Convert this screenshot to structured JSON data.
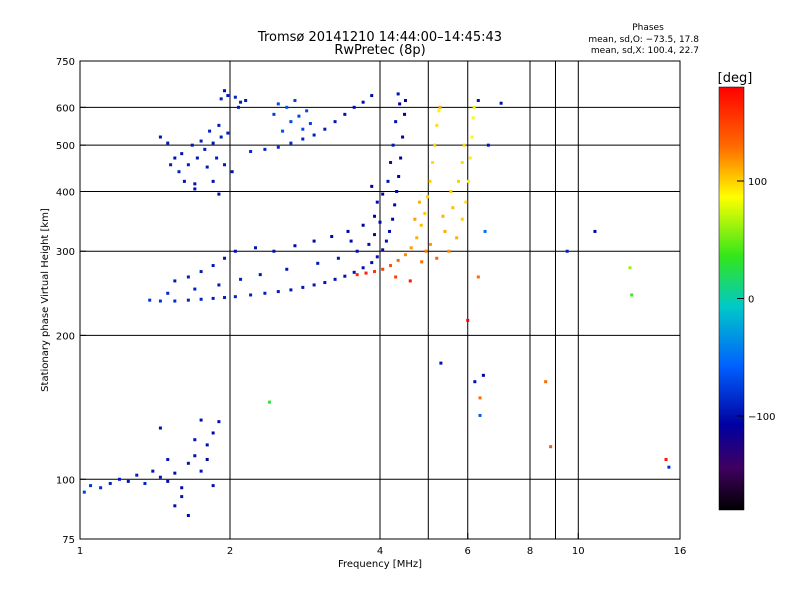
{
  "header": {
    "title_line1": "Tromsø 20141210 14:44:00–14:45:43",
    "title_line2": "RwPretec (8p)"
  },
  "phases": {
    "title": "Phases",
    "line_o": "mean, sd,O: −73.5, 17.8",
    "line_x": "mean, sd,X: 100.4, 22.7"
  },
  "colorbar": {
    "unit": "[deg]",
    "min": -180,
    "max": 180,
    "ticks": [
      {
        "value": 100,
        "label": "100"
      },
      {
        "value": 0,
        "label": "0"
      },
      {
        "value": -100,
        "label": "−100"
      }
    ]
  },
  "chart_data": {
    "type": "scatter",
    "title": "Tromsø 20141210 14:44:00–14:45:43",
    "subtitle": "RwPretec (8p)",
    "xlabel": "Frequency [MHz]",
    "ylabel": "Stationary phase Virtual Height [km]",
    "x_scale": "log",
    "y_scale": "log",
    "xlim": [
      1,
      16
    ],
    "ylim": [
      75,
      750
    ],
    "x_ticks": [
      {
        "value": 1,
        "label": "1"
      },
      {
        "value": 2,
        "label": "2"
      },
      {
        "value": 4,
        "label": "4"
      },
      {
        "value": 6,
        "label": "6"
      },
      {
        "value": 8,
        "label": "8"
      },
      {
        "value": 10,
        "label": "10"
      },
      {
        "value": 16,
        "label": "16"
      }
    ],
    "y_ticks": [
      {
        "value": 75,
        "label": "75"
      },
      {
        "value": 100,
        "label": "100"
      },
      {
        "value": 200,
        "label": "200"
      },
      {
        "value": 300,
        "label": "300"
      },
      {
        "value": 400,
        "label": "400"
      },
      {
        "value": 500,
        "label": "500"
      },
      {
        "value": 600,
        "label": "600"
      },
      {
        "value": 750,
        "label": "750"
      }
    ],
    "grid_x": [
      1,
      2,
      4,
      5,
      6,
      8,
      9,
      10,
      16
    ],
    "grid_y": [
      100,
      200,
      300,
      400,
      500,
      600
    ],
    "grid": true,
    "color_value": "phase [deg]",
    "series": [
      {
        "points": [
          [
            1.38,
            237,
            -80
          ],
          [
            1.45,
            236,
            -80
          ],
          [
            1.55,
            236,
            -85
          ],
          [
            1.65,
            237,
            -88
          ],
          [
            1.75,
            238,
            -90
          ],
          [
            1.85,
            239,
            -92
          ],
          [
            1.95,
            240,
            -92
          ],
          [
            2.05,
            241,
            -90
          ],
          [
            2.2,
            243,
            -90
          ],
          [
            2.35,
            245,
            -92
          ],
          [
            2.5,
            247,
            -92
          ],
          [
            2.65,
            249,
            -95
          ],
          [
            2.8,
            252,
            -95
          ],
          [
            2.95,
            255,
            -95
          ],
          [
            3.1,
            258,
            -96
          ],
          [
            3.25,
            262,
            -98
          ],
          [
            3.4,
            266,
            -100
          ],
          [
            3.55,
            271,
            -100
          ],
          [
            3.7,
            277,
            -100
          ],
          [
            3.85,
            284,
            -102
          ],
          [
            3.95,
            292,
            -100
          ],
          [
            4.05,
            302,
            -102
          ],
          [
            4.12,
            315,
            -100
          ],
          [
            4.18,
            330,
            -102
          ],
          [
            4.24,
            350,
            -105
          ],
          [
            4.28,
            375,
            -105
          ],
          [
            4.32,
            400,
            -105
          ],
          [
            4.36,
            430,
            -108
          ],
          [
            4.4,
            470,
            -108
          ],
          [
            4.44,
            520,
            -110
          ],
          [
            4.48,
            580,
            -108
          ],
          [
            4.5,
            620,
            -110
          ],
          [
            4.35,
            640,
            -100
          ],
          [
            4.38,
            610,
            -110
          ],
          [
            4.3,
            560,
            -100
          ],
          [
            4.25,
            500,
            -95
          ],
          [
            4.2,
            460,
            -100
          ],
          [
            4.15,
            420,
            -98
          ]
        ]
      },
      {
        "points": [
          [
            1.55,
            260,
            -95
          ],
          [
            1.65,
            265,
            -90
          ],
          [
            1.75,
            272,
            -92
          ],
          [
            1.85,
            280,
            -95
          ],
          [
            1.95,
            290,
            -100
          ],
          [
            2.05,
            300,
            -100
          ],
          [
            2.25,
            305,
            -98
          ],
          [
            2.45,
            300,
            -100
          ],
          [
            2.7,
            308,
            -102
          ],
          [
            2.95,
            315,
            -104
          ],
          [
            3.2,
            322,
            -105
          ],
          [
            3.45,
            330,
            -106
          ],
          [
            3.7,
            340,
            -108
          ],
          [
            3.9,
            355,
            -110
          ],
          [
            3.6,
            300,
            -100
          ],
          [
            3.3,
            290,
            -98
          ],
          [
            3.0,
            283,
            -96
          ],
          [
            2.6,
            275,
            -95
          ],
          [
            2.3,
            268,
            -95
          ],
          [
            2.1,
            262,
            -92
          ],
          [
            1.9,
            255,
            -94
          ],
          [
            1.7,
            250,
            -90
          ],
          [
            1.5,
            245,
            -88
          ],
          [
            3.8,
            310,
            -100
          ],
          [
            3.5,
            315,
            -102
          ],
          [
            3.9,
            325,
            -104
          ],
          [
            4.0,
            345,
            -105
          ],
          [
            3.95,
            380,
            -104
          ],
          [
            4.05,
            395,
            -106
          ],
          [
            3.85,
            410,
            -108
          ]
        ]
      },
      {
        "points": [
          [
            3.6,
            268,
            160
          ],
          [
            3.75,
            270,
            165
          ],
          [
            3.9,
            272,
            155
          ],
          [
            4.05,
            275,
            150
          ],
          [
            4.2,
            280,
            140
          ],
          [
            4.35,
            287,
            130
          ],
          [
            4.5,
            295,
            120
          ],
          [
            4.62,
            305,
            115
          ],
          [
            4.74,
            320,
            110
          ],
          [
            4.84,
            340,
            105
          ],
          [
            4.92,
            360,
            100
          ],
          [
            4.98,
            390,
            98
          ],
          [
            5.04,
            420,
            100
          ],
          [
            5.1,
            460,
            95
          ],
          [
            5.15,
            500,
            100
          ],
          [
            5.2,
            550,
            95
          ],
          [
            5.25,
            590,
            90
          ],
          [
            5.28,
            600,
            110
          ],
          [
            4.8,
            380,
            110
          ],
          [
            4.7,
            350,
            115
          ],
          [
            4.95,
            300,
            125
          ],
          [
            5.2,
            290,
            135
          ],
          [
            5.5,
            300,
            120
          ],
          [
            5.7,
            320,
            110
          ],
          [
            5.85,
            350,
            100
          ],
          [
            5.95,
            380,
            95
          ],
          [
            6.02,
            420,
            92
          ],
          [
            6.07,
            470,
            90
          ],
          [
            6.12,
            520,
            88
          ],
          [
            6.15,
            570,
            85
          ],
          [
            6.18,
            600,
            80
          ],
          [
            5.4,
            330,
            110
          ],
          [
            5.6,
            370,
            105
          ],
          [
            5.75,
            420,
            100
          ],
          [
            5.85,
            460,
            95
          ],
          [
            5.9,
            500,
            100
          ],
          [
            4.6,
            260,
            170
          ],
          [
            4.3,
            265,
            150
          ],
          [
            4.85,
            285,
            130
          ],
          [
            5.05,
            310,
            115
          ],
          [
            5.35,
            355,
            108
          ],
          [
            5.55,
            400,
            100
          ]
        ]
      },
      {
        "points": [
          [
            1.58,
            440,
            -90
          ],
          [
            1.65,
            455,
            -92
          ],
          [
            1.72,
            470,
            -95
          ],
          [
            1.78,
            490,
            -95
          ],
          [
            1.85,
            505,
            -98
          ],
          [
            1.92,
            520,
            -92
          ],
          [
            1.98,
            530,
            -90
          ],
          [
            1.6,
            480,
            -100
          ],
          [
            1.68,
            500,
            -96
          ],
          [
            1.75,
            510,
            -94
          ],
          [
            1.82,
            535,
            -92
          ],
          [
            1.9,
            550,
            -94
          ],
          [
            1.62,
            420,
            -98
          ],
          [
            1.7,
            415,
            -100
          ],
          [
            1.8,
            450,
            -95
          ],
          [
            1.88,
            470,
            -92
          ],
          [
            1.95,
            455,
            -96
          ],
          [
            2.02,
            440,
            -98
          ],
          [
            1.55,
            470,
            -100
          ],
          [
            1.5,
            505,
            -96
          ],
          [
            1.45,
            520,
            -98
          ],
          [
            1.52,
            455,
            -92
          ],
          [
            1.85,
            420,
            -100
          ],
          [
            1.9,
            395,
            -102
          ],
          [
            1.7,
            405,
            -98
          ],
          [
            1.92,
            625,
            -92
          ],
          [
            1.98,
            635,
            -95
          ],
          [
            2.05,
            630,
            -90
          ],
          [
            2.1,
            615,
            -92
          ],
          [
            2.15,
            620,
            -95
          ],
          [
            2.08,
            600,
            -94
          ],
          [
            1.95,
            650,
            -100
          ]
        ]
      },
      {
        "points": [
          [
            2.2,
            485,
            -85
          ],
          [
            2.35,
            490,
            -88
          ],
          [
            2.5,
            495,
            -86
          ],
          [
            2.65,
            505,
            -88
          ],
          [
            2.8,
            515,
            -90
          ],
          [
            2.95,
            525,
            -92
          ],
          [
            3.1,
            540,
            -94
          ],
          [
            3.25,
            560,
            -96
          ],
          [
            3.4,
            580,
            -98
          ],
          [
            3.55,
            600,
            -100
          ],
          [
            3.7,
            615,
            -102
          ],
          [
            3.85,
            635,
            -104
          ],
          [
            2.65,
            560,
            -70
          ],
          [
            2.75,
            575,
            -72
          ],
          [
            2.85,
            590,
            -68
          ],
          [
            2.7,
            620,
            -75
          ],
          [
            2.8,
            540,
            -70
          ],
          [
            2.6,
            600,
            -65
          ],
          [
            2.9,
            555,
            -72
          ],
          [
            2.55,
            535,
            -68
          ],
          [
            2.5,
            610,
            -70
          ],
          [
            2.45,
            580,
            -75
          ]
        ]
      },
      {
        "points": [
          [
            1.02,
            94,
            -75
          ],
          [
            1.05,
            97,
            -80
          ],
          [
            1.1,
            96,
            -85
          ],
          [
            1.15,
            98,
            -90
          ],
          [
            1.2,
            100,
            -95
          ],
          [
            1.25,
            99,
            -98
          ],
          [
            1.3,
            102,
            -90
          ],
          [
            1.35,
            98,
            -88
          ],
          [
            1.4,
            104,
            -100
          ],
          [
            1.45,
            101,
            -95
          ],
          [
            1.5,
            99,
            -102
          ],
          [
            1.55,
            103,
            -100
          ],
          [
            1.6,
            96,
            -104
          ],
          [
            1.65,
            108,
            -98
          ],
          [
            1.7,
            112,
            -100
          ],
          [
            1.75,
            104,
            -96
          ],
          [
            1.8,
            118,
            -102
          ],
          [
            1.85,
            125,
            -105
          ],
          [
            1.9,
            132,
            -100
          ],
          [
            1.55,
            88,
            -100
          ],
          [
            1.6,
            92,
            -98
          ],
          [
            1.65,
            84,
            -102
          ],
          [
            1.5,
            110,
            -96
          ],
          [
            1.45,
            128,
            -100
          ],
          [
            1.7,
            121,
            -98
          ],
          [
            1.75,
            133,
            -100
          ],
          [
            1.8,
            110,
            -104
          ],
          [
            1.85,
            97,
            -100
          ]
        ]
      },
      {
        "points": [
          [
            6.3,
            620,
            -100
          ],
          [
            6.6,
            500,
            -98
          ],
          [
            7.0,
            612,
            -102
          ],
          [
            10.8,
            330,
            -105
          ],
          [
            9.5,
            300,
            -90
          ],
          [
            12.7,
            277,
            60
          ],
          [
            12.8,
            243,
            40
          ],
          [
            6.5,
            330,
            -50
          ],
          [
            6.3,
            265,
            130
          ],
          [
            6.0,
            215,
            180
          ],
          [
            6.45,
            165,
            -110
          ],
          [
            6.35,
            148,
            130
          ],
          [
            6.35,
            136,
            -60
          ],
          [
            6.2,
            160,
            -100
          ],
          [
            8.6,
            160,
            130
          ],
          [
            8.8,
            117,
            140
          ],
          [
            15.0,
            110,
            170
          ],
          [
            15.2,
            106,
            -80
          ],
          [
            2.4,
            145,
            30
          ],
          [
            5.3,
            175,
            -100
          ]
        ]
      }
    ]
  }
}
